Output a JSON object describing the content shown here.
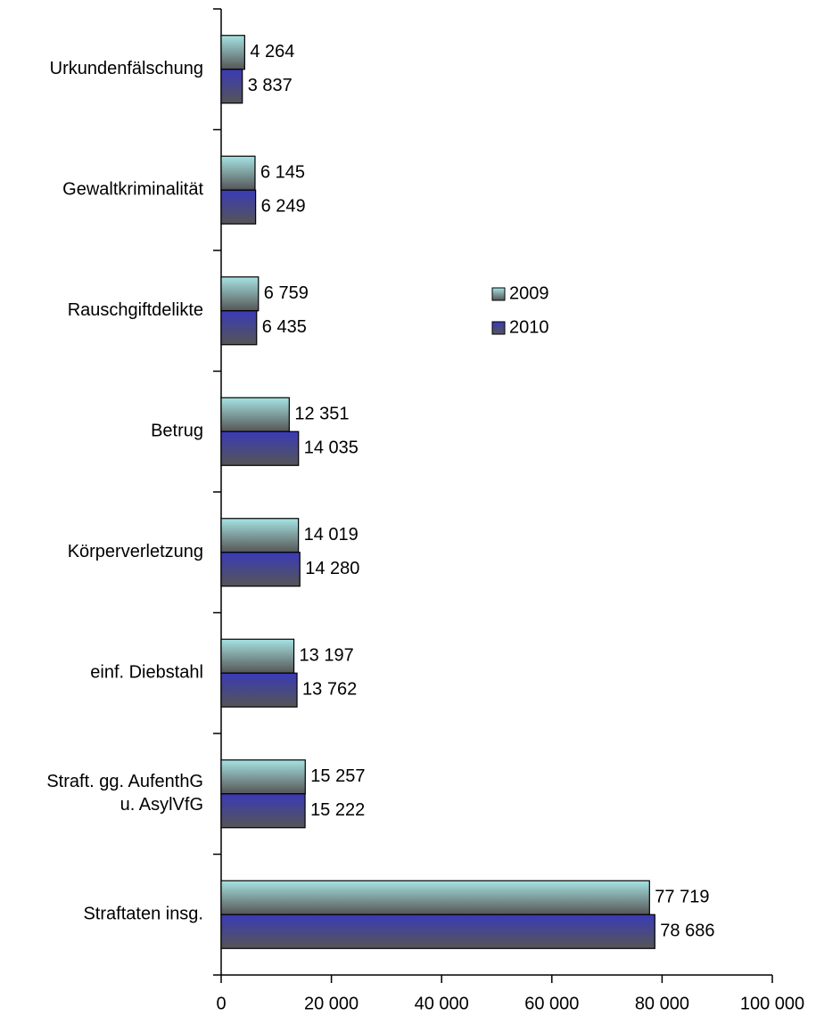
{
  "chart_data": {
    "type": "bar",
    "orientation": "horizontal",
    "categories": [
      "Urkundenfälschung",
      "Gewaltkriminalität",
      "Rauschgiftdelikte",
      "Betrug",
      "Körperverletzung",
      "einf. Diebstahl",
      "Straft. gg. AufenthG\nu. AsylVfG",
      "Straftaten insg."
    ],
    "series": [
      {
        "name": "2009",
        "color": "#a6e3e3",
        "values": [
          4264,
          6145,
          6759,
          12351,
          14019,
          13197,
          15257,
          77719
        ],
        "value_labels": [
          "4 264",
          "6 145",
          "6 759",
          "12 351",
          "14 019",
          "13 197",
          "15 257",
          "77 719"
        ]
      },
      {
        "name": "2010",
        "color": "#3a3ab8",
        "values": [
          3837,
          6249,
          6435,
          14035,
          14280,
          13762,
          15222,
          78686
        ],
        "value_labels": [
          "3 837",
          "6 249",
          "6 435",
          "14 035",
          "14 280",
          "13 762",
          "15 222",
          "78 686"
        ]
      }
    ],
    "xlim": [
      0,
      100000
    ],
    "xticks": [
      0,
      {
        "value": 20000,
        "label": "20 000"
      },
      {
        "value": 40000,
        "label": "40 000"
      },
      {
        "value": 60000,
        "label": "60 000"
      },
      {
        "value": 80000,
        "label": "80 000"
      },
      {
        "value": 100000,
        "label": "100 000"
      }
    ],
    "legend": "right"
  }
}
